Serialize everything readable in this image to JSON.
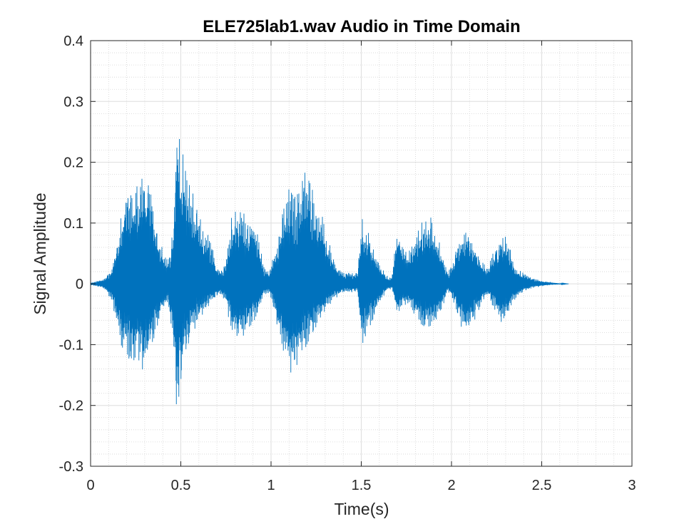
{
  "chart_data": {
    "type": "line",
    "title": "ELE725lab1.wav Audio in Time Domain",
    "xlabel": "Time(s)",
    "ylabel": "Signal Amplitude",
    "xlim": [
      0,
      3
    ],
    "ylim": [
      -0.3,
      0.4
    ],
    "x_ticks": [
      0,
      0.5,
      1,
      1.5,
      2,
      2.5,
      3
    ],
    "x_tick_labels": [
      "0",
      "0.5",
      "1",
      "1.5",
      "2",
      "2.5",
      "3"
    ],
    "y_ticks": [
      0.4,
      0.3,
      0.2,
      0.1,
      0,
      -0.1,
      -0.2,
      -0.3
    ],
    "y_tick_labels": [
      "0.4",
      "0.3",
      "0.2",
      "0.1",
      "0",
      "-0.1",
      "-0.2",
      "-0.3"
    ],
    "grid": true,
    "minor_grid": true,
    "line_color": "#0072BD",
    "series": [
      {
        "envelope": {
          "t": [
            0,
            0.03,
            0.08,
            0.12,
            0.16,
            0.19,
            0.22,
            0.26,
            0.3,
            0.33,
            0.36,
            0.4,
            0.43,
            0.46,
            0.48,
            0.5,
            0.53,
            0.57,
            0.6,
            0.63,
            0.66,
            0.69,
            0.72,
            0.75,
            0.78,
            0.82,
            0.86,
            0.9,
            0.93,
            0.96,
            0.99,
            1.02,
            1.06,
            1.1,
            1.14,
            1.17,
            1.2,
            1.24,
            1.28,
            1.32,
            1.36,
            1.4,
            1.44,
            1.48,
            1.5,
            1.54,
            1.58,
            1.61,
            1.64,
            1.67,
            1.7,
            1.73,
            1.77,
            1.81,
            1.85,
            1.89,
            1.92,
            1.95,
            1.98,
            2.01,
            2.05,
            2.09,
            2.13,
            2.17,
            2.2,
            2.24,
            2.28,
            2.31,
            2.34,
            2.37,
            2.41,
            2.45,
            2.5,
            2.55,
            2.6,
            2.65
          ],
          "upper": [
            0.002,
            0.004,
            0.01,
            0.03,
            0.1,
            0.16,
            0.17,
            0.18,
            0.2,
            0.17,
            0.12,
            0.06,
            0.04,
            0.1,
            0.3,
            0.24,
            0.2,
            0.15,
            0.12,
            0.09,
            0.08,
            0.04,
            0.025,
            0.04,
            0.12,
            0.125,
            0.12,
            0.11,
            0.09,
            0.03,
            0.02,
            0.06,
            0.12,
            0.16,
            0.15,
            0.19,
            0.196,
            0.16,
            0.12,
            0.07,
            0.03,
            0.02,
            0.02,
            0.02,
            0.115,
            0.09,
            0.05,
            0.03,
            0.015,
            0.01,
            0.11,
            0.07,
            0.06,
            0.09,
            0.12,
            0.11,
            0.09,
            0.05,
            0.02,
            0.04,
            0.1,
            0.1,
            0.07,
            0.04,
            0.03,
            0.06,
            0.08,
            0.08,
            0.04,
            0.025,
            0.015,
            0.01,
            0.005,
            0.003,
            0.001,
            0.0
          ],
          "lower": [
            -0.002,
            -0.004,
            -0.01,
            -0.03,
            -0.1,
            -0.12,
            -0.13,
            -0.13,
            -0.15,
            -0.12,
            -0.09,
            -0.05,
            -0.03,
            -0.12,
            -0.27,
            -0.17,
            -0.12,
            -0.08,
            -0.06,
            -0.05,
            -0.04,
            -0.025,
            -0.02,
            -0.03,
            -0.09,
            -0.1,
            -0.09,
            -0.07,
            -0.05,
            -0.02,
            -0.015,
            -0.05,
            -0.12,
            -0.16,
            -0.16,
            -0.13,
            -0.11,
            -0.09,
            -0.06,
            -0.04,
            -0.025,
            -0.015,
            -0.015,
            -0.015,
            -0.11,
            -0.08,
            -0.05,
            -0.03,
            -0.012,
            -0.008,
            -0.06,
            -0.04,
            -0.04,
            -0.06,
            -0.08,
            -0.08,
            -0.06,
            -0.04,
            -0.015,
            -0.03,
            -0.07,
            -0.08,
            -0.06,
            -0.03,
            -0.02,
            -0.05,
            -0.07,
            -0.06,
            -0.03,
            -0.02,
            -0.012,
            -0.008,
            -0.004,
            -0.002,
            -0.001,
            0.0
          ]
        }
      }
    ]
  }
}
